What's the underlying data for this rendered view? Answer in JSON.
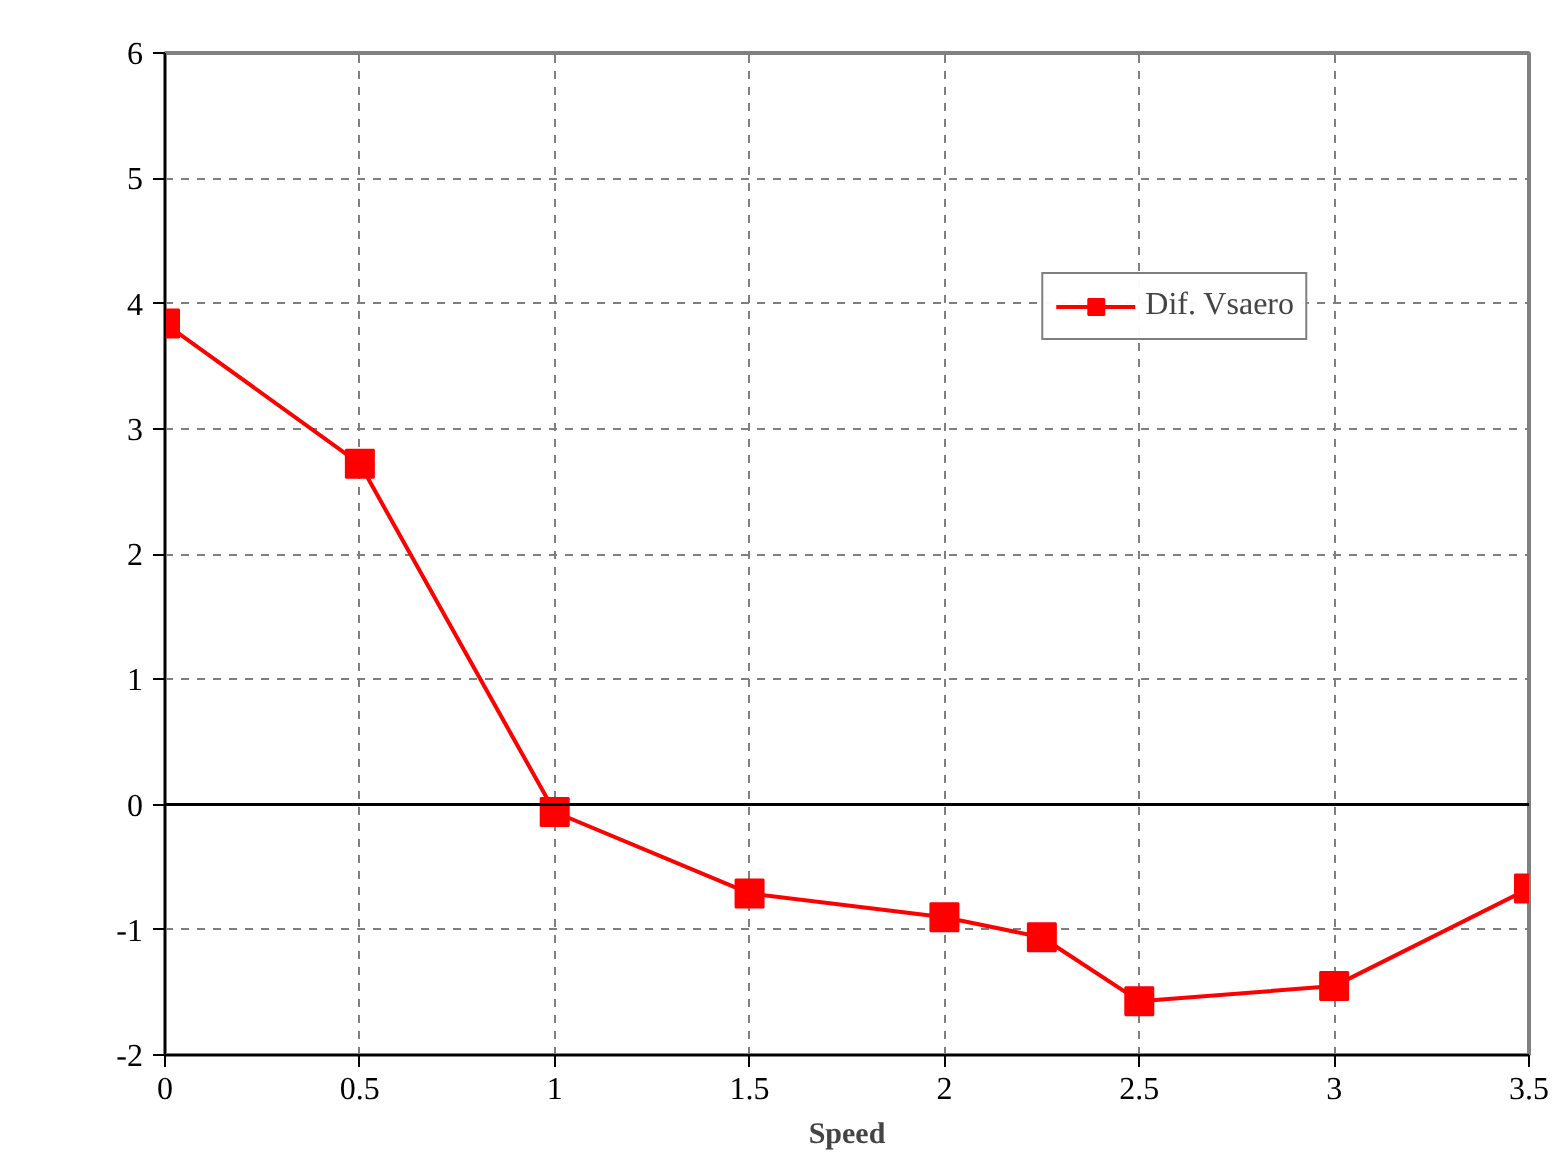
{
  "chart_data": {
    "type": "line",
    "xlabel": "Speed",
    "x": [
      0,
      0.5,
      1,
      1.5,
      2,
      2.25,
      2.5,
      3,
      3.5
    ],
    "series": [
      {
        "name": "Dif. Vsaero",
        "color": "#ff0000",
        "values": [
          3.84,
          2.72,
          -0.06,
          -0.71,
          -0.9,
          -1.06,
          -1.57,
          -1.45,
          -0.67
        ]
      }
    ],
    "xlim": [
      0,
      3.5
    ],
    "ylim": [
      -2,
      6
    ],
    "xticks": [
      0,
      0.5,
      1,
      1.5,
      2,
      2.5,
      3,
      3.5
    ],
    "yticks": [
      -2,
      -1,
      0,
      1,
      2,
      3,
      4,
      5,
      6
    ],
    "grid": true,
    "legend": "top right",
    "marker": "square",
    "line_style": "solid"
  }
}
